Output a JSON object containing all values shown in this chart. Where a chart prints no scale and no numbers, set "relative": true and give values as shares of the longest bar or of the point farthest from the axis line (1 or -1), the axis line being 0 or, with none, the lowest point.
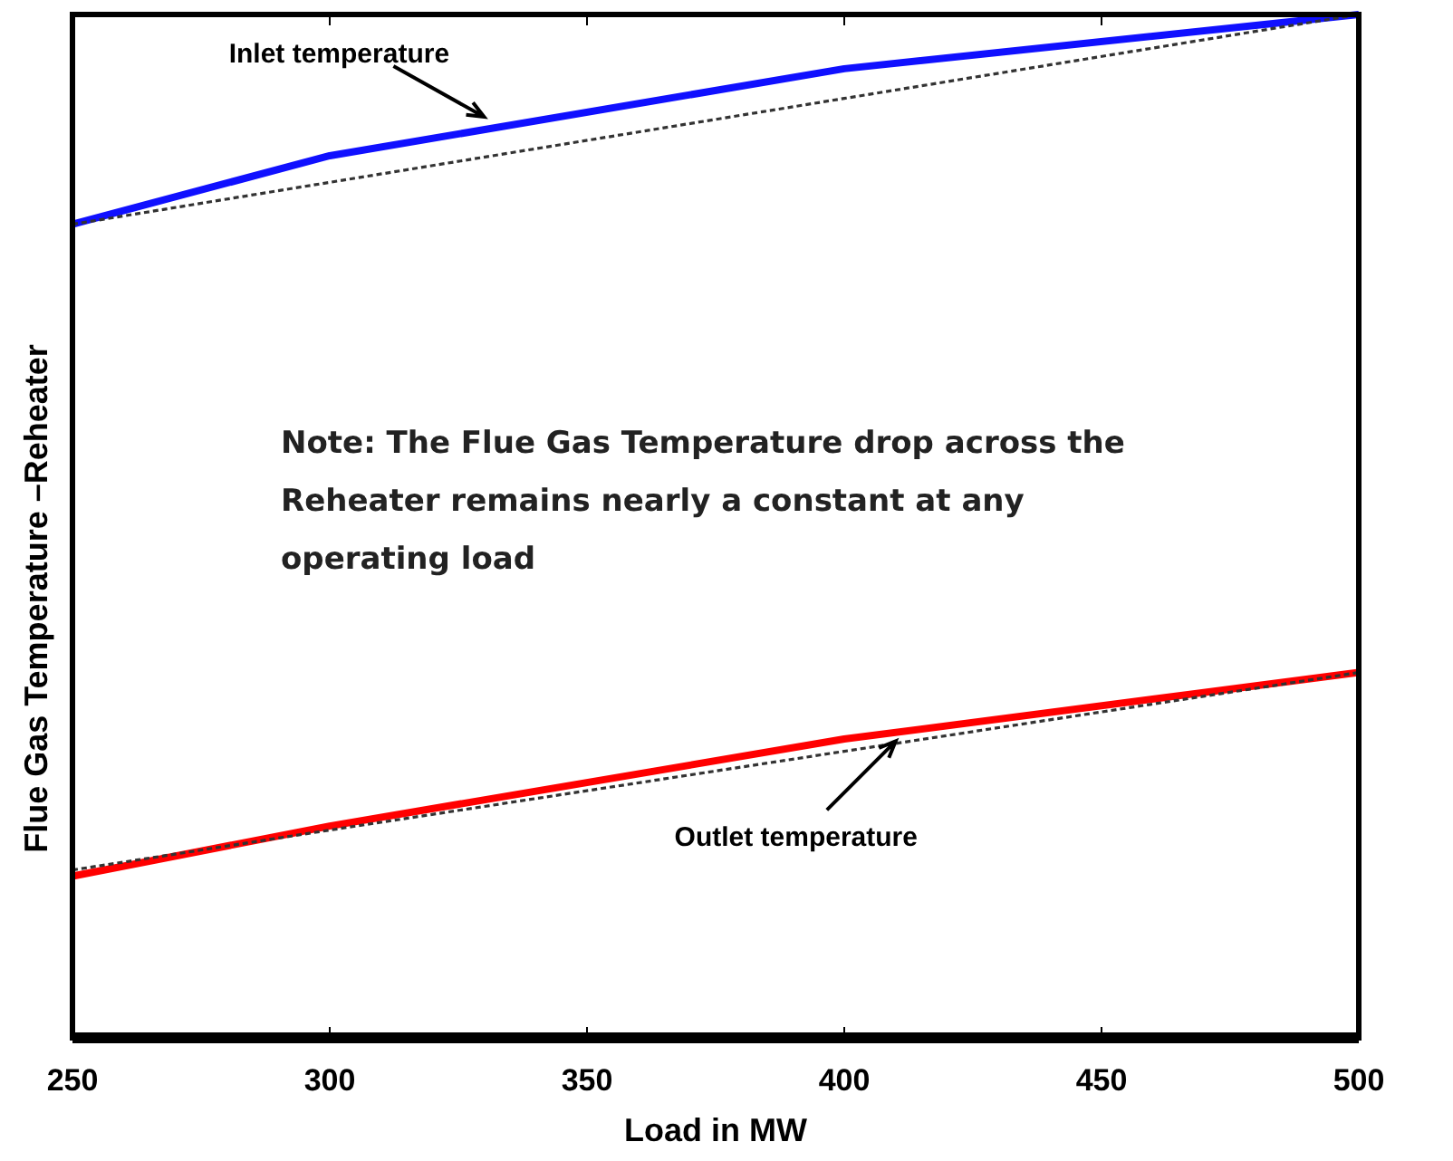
{
  "chart_data": {
    "type": "line",
    "relative": true,
    "xlabel": "Load in MW",
    "ylabel": "Flue Gas Temperature –Reheater",
    "x": [
      250,
      300,
      400,
      500
    ],
    "xlim": [
      250,
      500
    ],
    "xticks": [
      250,
      300,
      350,
      400,
      450,
      500
    ],
    "series": [
      {
        "color": "#1010ff",
        "values": [
          0.795,
          0.862,
          0.947,
          1.0
        ]
      },
      {
        "color": "#ff0000",
        "values": [
          0.158,
          0.207,
          0.292,
          0.357
        ]
      },
      {
        "color": "#333333",
        "values": [
          0.795,
          0.836,
          0.918,
          1.0
        ],
        "line_style": "dotted"
      },
      {
        "color": "#333333",
        "values": [
          0.164,
          0.203,
          0.28,
          0.357
        ],
        "line_style": "dotted"
      }
    ],
    "annotations": [
      {
        "text": "Inlet temperature",
        "x": 330,
        "y": 0.9
      },
      {
        "text": "Outlet temperature",
        "x": 410,
        "y": 0.29
      },
      "Note:  The Flue Gas Temperature drop across the Reheater remains nearly a constant at any operating load"
    ]
  }
}
